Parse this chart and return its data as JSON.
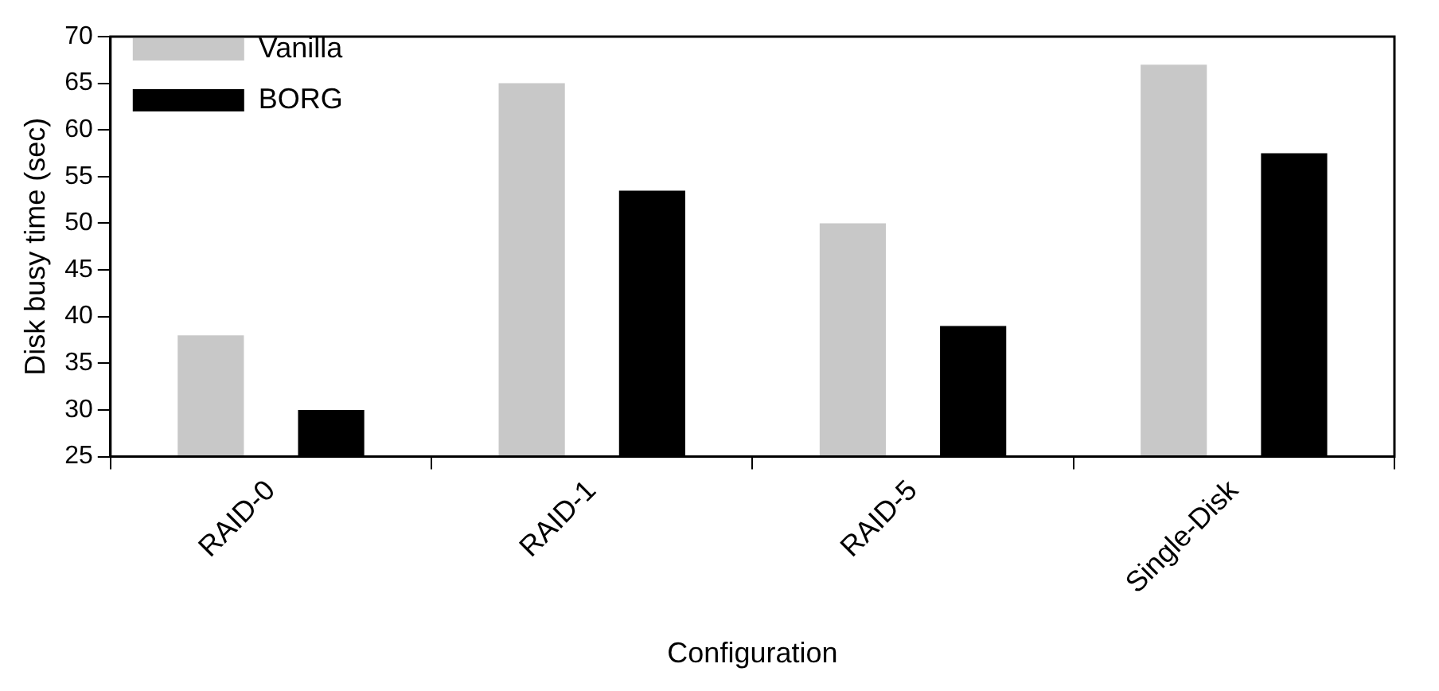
{
  "chart_data": {
    "type": "bar",
    "xlabel": "Configuration",
    "ylabel": "Disk busy time (sec)",
    "categories": [
      "RAID-0",
      "RAID-1",
      "RAID-5",
      "Single-Disk"
    ],
    "series": [
      {
        "name": "Vanilla",
        "color": "#c8c8c8",
        "values": [
          38,
          65,
          50,
          67
        ]
      },
      {
        "name": "BORG",
        "color": "#000000",
        "values": [
          30,
          53.5,
          39,
          57.5
        ]
      }
    ],
    "ylim": [
      25,
      70
    ],
    "yticks": [
      25,
      30,
      35,
      40,
      45,
      50,
      55,
      60,
      65,
      70
    ],
    "grid": false,
    "legend": "top left"
  }
}
